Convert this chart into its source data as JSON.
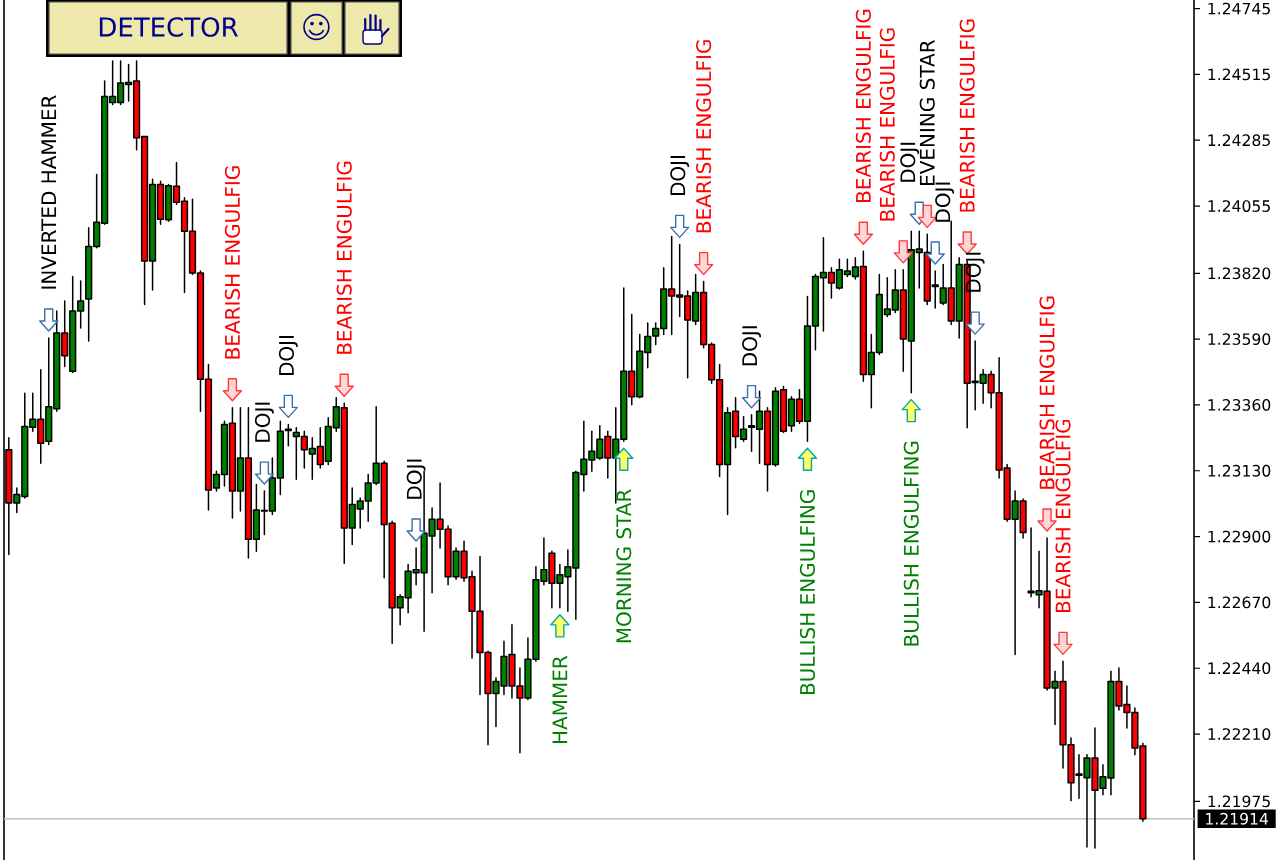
{
  "chart_data": {
    "type": "candlestick",
    "categories": [
      null,
      null,
      null,
      null,
      null,
      null,
      null,
      null,
      null,
      null,
      null,
      null,
      null,
      null,
      null,
      null,
      null,
      null,
      null,
      null,
      null,
      null,
      null,
      null,
      null,
      null,
      null,
      null,
      null,
      null,
      null,
      null,
      null,
      null,
      null,
      null,
      null,
      null,
      null,
      null,
      null,
      null,
      null,
      null,
      null,
      null,
      null,
      null,
      null,
      null,
      null,
      null,
      null,
      null,
      null,
      null,
      null,
      null,
      null,
      null,
      null,
      null,
      null,
      null,
      null,
      null,
      null,
      null,
      null,
      null,
      null,
      null,
      null,
      null,
      null,
      null,
      null,
      null,
      null,
      null,
      null,
      null,
      null,
      null,
      null,
      null,
      null,
      null,
      null,
      null,
      null,
      null,
      null,
      null,
      null,
      null,
      null,
      null,
      null,
      null,
      null,
      null,
      null,
      null,
      null,
      null,
      null,
      null,
      null,
      null,
      null,
      null,
      null,
      null,
      null,
      null,
      null,
      null,
      null,
      null,
      null,
      null,
      null,
      null,
      null,
      null,
      null,
      null,
      null,
      null,
      null,
      null,
      null,
      null,
      null,
      null,
      null,
      null,
      null,
      null,
      null,
      null,
      null
    ],
    "ohlc": [
      [
        1.23203,
        1.23245,
        1.22837,
        1.23017
      ],
      [
        1.23017,
        1.2307,
        1.22984,
        1.23047
      ],
      [
        1.2304,
        1.23401,
        1.23035,
        1.23285
      ],
      [
        1.23282,
        1.23401,
        1.23268,
        1.2331
      ],
      [
        1.2331,
        1.23483,
        1.23156,
        1.23226
      ],
      [
        1.23233,
        1.23594,
        1.23222,
        1.23354
      ],
      [
        1.23347,
        1.23688,
        1.23338,
        1.23611
      ],
      [
        1.23611,
        1.23723,
        1.23494,
        1.23532
      ],
      [
        1.23478,
        1.23809,
        1.23473,
        1.23688
      ],
      [
        1.23688,
        1.23793,
        1.23629,
        1.23723
      ],
      [
        1.2373,
        1.23979,
        1.23583,
        1.23914
      ],
      [
        1.23914,
        1.24165,
        1.23909,
        1.23998
      ],
      [
        1.23995,
        1.24492,
        1.23991,
        1.24438
      ],
      [
        1.24417,
        1.24562,
        1.2441,
        1.24438
      ],
      [
        1.24417,
        1.24562,
        1.2441,
        1.24485
      ],
      [
        1.2448,
        1.2455,
        1.24422,
        1.24487
      ],
      [
        1.24492,
        1.24562,
        1.24252,
        1.24294
      ],
      [
        1.24298,
        1.24298,
        1.23711,
        1.23863
      ],
      [
        1.23863,
        1.24149,
        1.23762,
        1.2413
      ],
      [
        1.2413,
        1.24142,
        1.23991,
        1.24009
      ],
      [
        1.24007,
        1.2413,
        1.24002,
        1.24126
      ],
      [
        1.24124,
        1.24207,
        1.24061,
        1.24068
      ],
      [
        1.24072,
        1.24084,
        1.23753,
        1.23967
      ],
      [
        1.23967,
        1.24079,
        1.23816,
        1.23821
      ],
      [
        1.23821,
        1.23828,
        1.23338,
        1.2345
      ],
      [
        1.2345,
        1.23501,
        1.22993,
        1.23063
      ],
      [
        1.2307,
        1.23128,
        1.23059,
        1.23117
      ],
      [
        1.23117,
        1.23303,
        1.23077,
        1.23292
      ],
      [
        1.23296,
        1.2335,
        1.22965,
        1.23059
      ],
      [
        1.23059,
        1.2335,
        1.22989,
        1.23175
      ],
      [
        1.23175,
        1.2335,
        1.22825,
        1.22891
      ],
      [
        1.22891,
        1.23082,
        1.22849,
        1.22993
      ],
      [
        1.22989,
        1.23059,
        1.22907,
        1.22991
      ],
      [
        1.22989,
        1.23175,
        1.22977,
        1.23105
      ],
      [
        1.23105,
        1.23303,
        1.23047,
        1.23268
      ],
      [
        1.23271,
        1.23292,
        1.23217,
        1.23275
      ],
      [
        1.2325,
        1.2328,
        1.231,
        1.23264
      ],
      [
        1.2325,
        1.23268,
        1.2314,
        1.23203
      ],
      [
        1.23189,
        1.23245,
        1.231,
        1.23208
      ],
      [
        1.23215,
        1.2328,
        1.2314,
        1.23152
      ],
      [
        1.23163,
        1.23315,
        1.23152,
        1.23285
      ],
      [
        1.2328,
        1.23385,
        1.23268,
        1.23354
      ],
      [
        1.2335,
        1.23366,
        1.22807,
        1.2293
      ],
      [
        1.2293,
        1.2307,
        1.22872,
        1.23012
      ],
      [
        1.22996,
        1.23035,
        1.2293,
        1.23024
      ],
      [
        1.23024,
        1.23117,
        1.22954,
        1.23087
      ],
      [
        1.23087,
        1.23354,
        1.23082,
        1.23156
      ],
      [
        1.23156,
        1.23163,
        1.22756,
        1.22942
      ],
      [
        1.22947,
        1.22954,
        1.22527,
        1.22651
      ],
      [
        1.22651,
        1.22697,
        1.22592,
        1.2269
      ],
      [
        1.22686,
        1.22802,
        1.22634,
        1.22779
      ],
      [
        1.22774,
        1.2286,
        1.22732,
        1.22784
      ],
      [
        1.22774,
        1.23128,
        1.22569,
        1.22912
      ],
      [
        1.22902,
        1.23,
        1.22704,
        1.22961
      ],
      [
        1.22961,
        1.23087,
        1.2286,
        1.22926
      ],
      [
        1.22926,
        1.22937,
        1.22732,
        1.2276
      ],
      [
        1.2276,
        1.2286,
        1.22751,
        1.22849
      ],
      [
        1.22849,
        1.22884,
        1.22744,
        1.22756
      ],
      [
        1.2276,
        1.22779,
        1.22476,
        1.22639
      ],
      [
        1.22639,
        1.2283,
        1.22348,
        1.22495
      ],
      [
        1.22495,
        1.22499,
        1.22173,
        1.22352
      ],
      [
        1.22352,
        1.22406,
        1.22236,
        1.22394
      ],
      [
        1.22378,
        1.22534,
        1.22348,
        1.22481
      ],
      [
        1.22488,
        1.22592,
        1.22336,
        1.22378
      ],
      [
        1.22378,
        1.22441,
        1.22145,
        1.22336
      ],
      [
        1.22336,
        1.22546,
        1.22331,
        1.22471
      ],
      [
        1.22471,
        1.22795,
        1.22464,
        1.22749
      ],
      [
        1.22744,
        1.22895,
        1.22732,
        1.22784
      ],
      [
        1.22842,
        1.22849,
        1.22651,
        1.22737
      ],
      [
        1.22737,
        1.22802,
        1.22651,
        1.22767
      ],
      [
        1.2276,
        1.22853,
        1.22639,
        1.22795
      ],
      [
        1.2279,
        1.23128,
        1.22611,
        1.23124
      ],
      [
        1.23117,
        1.23303,
        1.23059,
        1.2317
      ],
      [
        1.23168,
        1.23268,
        1.23128,
        1.23198
      ],
      [
        1.23175,
        1.23287,
        1.2317,
        1.2324
      ],
      [
        1.2325,
        1.23268,
        1.23105,
        1.23175
      ],
      [
        1.23175,
        1.2335,
        1.23017,
        1.2324
      ],
      [
        1.2324,
        1.23769,
        1.23233,
        1.23478
      ],
      [
        1.23478,
        1.23676,
        1.23361,
        1.23389
      ],
      [
        1.23389,
        1.23606,
        1.23385,
        1.23548
      ],
      [
        1.23543,
        1.23646,
        1.2349,
        1.23599
      ],
      [
        1.23601,
        1.23646,
        1.23571,
        1.23627
      ],
      [
        1.23627,
        1.23839,
        1.23606,
        1.23765
      ],
      [
        1.23765,
        1.23949,
        1.23606,
        1.23741
      ],
      [
        1.23744,
        1.23921,
        1.23669,
        1.23737
      ],
      [
        1.23741,
        1.23758,
        1.23455,
        1.23657
      ],
      [
        1.23653,
        1.23816,
        1.23641,
        1.23753
      ],
      [
        1.23753,
        1.23791,
        1.2356,
        1.23571
      ],
      [
        1.23571,
        1.23576,
        1.23436,
        1.23448
      ],
      [
        1.23448,
        1.23501,
        1.2311,
        1.23152
      ],
      [
        1.23152,
        1.2335,
        1.22977,
        1.23333
      ],
      [
        1.23338,
        1.23385,
        1.2321,
        1.2325
      ],
      [
        1.2324,
        1.23319,
        1.23233,
        1.23275
      ],
      [
        1.23282,
        1.23326,
        1.23198,
        1.23287
      ],
      [
        1.23275,
        1.23408,
        1.23156,
        1.23338
      ],
      [
        1.23338,
        1.2335,
        1.23059,
        1.23152
      ],
      [
        1.23152,
        1.2342,
        1.23147,
        1.23408
      ],
      [
        1.23413,
        1.23424,
        1.23264,
        1.23268
      ],
      [
        1.23287,
        1.23389,
        1.23268,
        1.2338
      ],
      [
        1.2338,
        1.23413,
        1.23296,
        1.23303
      ],
      [
        1.23303,
        1.23739,
        1.23233,
        1.23636
      ],
      [
        1.23636,
        1.23816,
        1.23553,
        1.23809
      ],
      [
        1.23804,
        1.23944,
        1.23618,
        1.23823
      ],
      [
        1.23823,
        1.23839,
        1.23734,
        1.23786
      ],
      [
        1.23769,
        1.23869,
        1.23765,
        1.23832
      ],
      [
        1.23816,
        1.23869,
        1.23809,
        1.23828
      ],
      [
        1.23809,
        1.23874,
        1.238,
        1.23842
      ],
      [
        1.23844,
        1.23897,
        1.23443,
        1.23466
      ],
      [
        1.23466,
        1.23606,
        1.2335,
        1.23543
      ],
      [
        1.23543,
        1.23816,
        1.23536,
        1.23746
      ],
      [
        1.23676,
        1.23804,
        1.23669,
        1.23695
      ],
      [
        1.23692,
        1.23832,
        1.23683,
        1.23762
      ],
      [
        1.23762,
        1.23832,
        1.23478,
        1.2359
      ],
      [
        1.23583,
        1.23967,
        1.23403,
        1.23902
      ],
      [
        1.23893,
        1.23967,
        1.23769,
        1.23905
      ],
      [
        1.23893,
        1.23956,
        1.23711,
        1.23723
      ],
      [
        1.23779,
        1.23828,
        1.23699,
        1.23774
      ],
      [
        1.23716,
        1.23851,
        1.23711,
        1.23769
      ],
      [
        1.23769,
        1.24002,
        1.23641,
        1.23653
      ],
      [
        1.23653,
        1.23874,
        1.23594,
        1.23851
      ],
      [
        1.23851,
        1.23863,
        1.2328,
        1.23436
      ],
      [
        1.23443,
        1.23583,
        1.23343,
        1.23438
      ],
      [
        1.23436,
        1.23483,
        1.23366,
        1.23466
      ],
      [
        1.23466,
        1.23478,
        1.2335,
        1.23403
      ],
      [
        1.23403,
        1.23525,
        1.23105,
        1.23133
      ],
      [
        1.2314,
        1.23152,
        1.22954,
        1.22961
      ],
      [
        1.22961,
        1.23059,
        1.22488,
        1.23024
      ],
      [
        1.23024,
        1.23031,
        1.22895,
        1.22914
      ],
      [
        1.22709,
        1.2293,
        1.2269,
        1.22704
      ],
      [
        1.22697,
        1.22849,
        1.22651,
        1.22711
      ],
      [
        1.22709,
        1.22895,
        1.22364,
        1.22371
      ],
      [
        1.22371,
        1.22429,
        1.22243,
        1.22394
      ],
      [
        1.22394,
        1.22464,
        1.22091,
        1.22173
      ],
      [
        1.22173,
        1.22196,
        1.21977,
        1.2204
      ],
      [
        1.2207,
        1.22138,
        1.21986,
        1.22066
      ],
      [
        1.22057,
        1.22138,
        1.21815,
        1.22126
      ],
      [
        1.22126,
        1.22231,
        1.21812,
        1.22014
      ],
      [
        1.22021,
        1.22103,
        1.21998,
        1.22061
      ],
      [
        1.22056,
        1.22429,
        1.21998,
        1.22394
      ],
      [
        1.22394,
        1.22441,
        1.22294,
        1.22308
      ],
      [
        1.22313,
        1.22378,
        1.22231,
        1.22285
      ],
      [
        1.22285,
        1.22301,
        1.22138,
        1.22161
      ],
      [
        1.22168,
        1.22178,
        1.21905,
        1.21914
      ]
    ],
    "colors": [
      "#ff0000",
      "#008000",
      "#008000",
      "#008000",
      "#ff0000",
      "#008000",
      "#008000",
      "#ff0000",
      "#008000",
      "#008000",
      "#008000",
      "#008000",
      "#008000",
      "#008000",
      "#008000",
      "#008000",
      "#ff0000",
      "#ff0000",
      "#008000",
      "#ff0000",
      "#008000",
      "#ff0000",
      "#ff0000",
      "#ff0000",
      "#ff0000",
      "#ff0000",
      "#008000",
      "#008000",
      "#ff0000",
      "#008000",
      "#ff0000",
      "#008000",
      "#008000",
      "#008000",
      "#008000",
      "#008000",
      "#008000",
      "#ff0000",
      "#008000",
      "#ff0000",
      "#008000",
      "#008000",
      "#ff0000",
      "#008000",
      "#008000",
      "#008000",
      "#008000",
      "#ff0000",
      "#ff0000",
      "#008000",
      "#008000",
      "#008000",
      "#008000",
      "#008000",
      "#ff0000",
      "#ff0000",
      "#008000",
      "#ff0000",
      "#ff0000",
      "#ff0000",
      "#ff0000",
      "#008000",
      "#008000",
      "#ff0000",
      "#ff0000",
      "#008000",
      "#008000",
      "#008000",
      "#ff0000",
      "#008000",
      "#008000",
      "#008000",
      "#008000",
      "#008000",
      "#008000",
      "#ff0000",
      "#008000",
      "#008000",
      "#ff0000",
      "#008000",
      "#008000",
      "#008000",
      "#008000",
      "#ff0000",
      "#ff0000",
      "#ff0000",
      "#008000",
      "#ff0000",
      "#ff0000",
      "#ff0000",
      "#008000",
      "#ff0000",
      "#008000",
      "#008000",
      "#008000",
      "#ff0000",
      "#008000",
      "#ff0000",
      "#008000",
      "#ff0000",
      "#008000",
      "#008000",
      "#008000",
      "#ff0000",
      "#008000",
      "#008000",
      "#008000",
      "#ff0000",
      "#008000",
      "#008000",
      "#008000",
      "#008000",
      "#ff0000",
      "#008000",
      "#008000",
      "#ff0000",
      "#ff0000",
      "#008000",
      "#ff0000",
      "#008000",
      "#ff0000",
      "#ff0000",
      "#008000",
      "#ff0000",
      "#ff0000",
      "#ff0000",
      "#008000",
      "#ff0000",
      "#ff0000",
      "#008000",
      "#ff0000",
      "#008000",
      "#ff0000",
      "#ff0000",
      "#ff0000",
      "#008000",
      "#ff0000",
      "#008000",
      "#008000",
      "#ff0000",
      "#ff0000",
      "#ff0000",
      "#ff0000"
    ],
    "ylim": [
      1.2177,
      1.24775
    ],
    "yticks": [
      {
        "value": 1.24745,
        "label": "1.24745"
      },
      {
        "value": 1.24515,
        "label": "1.24515"
      },
      {
        "value": 1.24285,
        "label": "1.24285"
      },
      {
        "value": 1.24055,
        "label": "1.24055"
      },
      {
        "value": 1.2382,
        "label": "1.23820"
      },
      {
        "value": 1.2359,
        "label": "1.23590"
      },
      {
        "value": 1.2336,
        "label": "1.23360"
      },
      {
        "value": 1.2313,
        "label": "1.23130"
      },
      {
        "value": 1.229,
        "label": "1.22900"
      },
      {
        "value": 1.2267,
        "label": "1.22670"
      },
      {
        "value": 1.2244,
        "label": "1.22440"
      },
      {
        "value": 1.2221,
        "label": "1.22210"
      },
      {
        "value": 1.21975,
        "label": "1.21975"
      }
    ],
    "tick_labels": "y",
    "ref_lines": [
      {
        "axis": "y",
        "value": 1.21914,
        "label": "1.21914",
        "color": "#c0c0c0"
      }
    ],
    "annotations": [
      "DETECTOR",
      {
        "text": "INVERTED HAMMER",
        "y": 1.23594
      },
      {
        "text": "BEARISH ENGULFIG",
        "y": 1.2335
      },
      {
        "text": "DOJI",
        "y": 1.23059
      },
      {
        "text": "DOJI",
        "y": 1.23292
      },
      {
        "text": "BEARISH ENGULFIG",
        "y": 1.23366
      },
      {
        "text": "DOJI",
        "y": 1.2286
      },
      {
        "text": "HAMMER",
        "y": 1.22651
      },
      {
        "text": "MORNING STAR",
        "y": 1.23233
      },
      {
        "text": "DOJI",
        "y": 1.23921
      },
      {
        "text": "BEARISH ENGULFIG",
        "y": 1.23791
      },
      {
        "text": "DOJI",
        "y": 1.23326
      },
      {
        "text": "BULLISH ENGULFING",
        "y": 1.23233
      },
      {
        "text": "BEARISH ENGULFIG",
        "y": 1.23897
      },
      {
        "text": "BEARISH ENGULFIG",
        "y": 1.23832
      },
      {
        "text": "BULLISH ENGULFING",
        "y": 1.23403
      },
      {
        "text": "DOJI",
        "y": 1.23967
      },
      {
        "text": "EVENING STAR",
        "y": 1.23956
      },
      {
        "text": "DOJI",
        "y": 1.23828
      },
      {
        "text": "BEARISH ENGULFIG",
        "y": 1.23863
      },
      {
        "text": "DOJI",
        "y": 1.23583
      },
      {
        "text": "BEARISH ENGULFIG",
        "y": 1.22895
      },
      {
        "text": "BEARISH ENGULFIG",
        "y": 1.22464
      }
    ]
  }
}
